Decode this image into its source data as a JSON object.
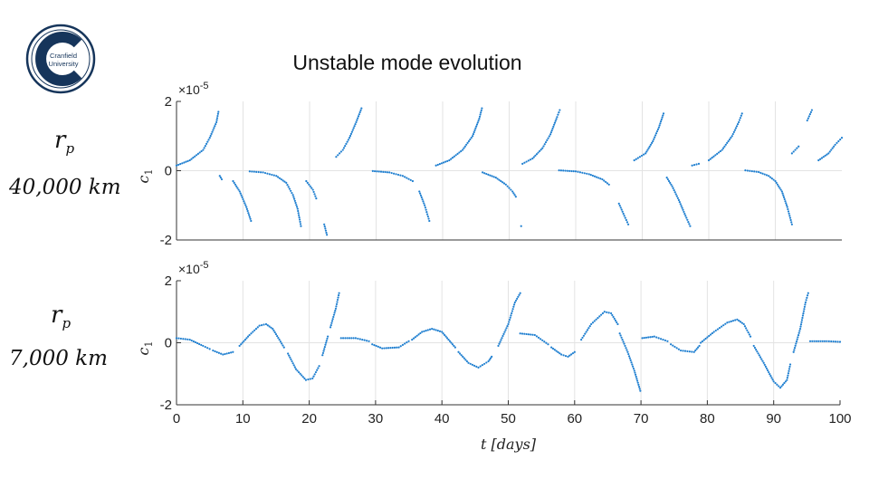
{
  "logo": {
    "line1": "Cranfield",
    "line2": "University"
  },
  "title": "Unstable mode evolution",
  "left_labels": [
    {
      "symbol": "r",
      "subscript": "p",
      "value": "40,000 km"
    },
    {
      "symbol": "r",
      "subscript": "p",
      "value": "7,000 km"
    }
  ],
  "colors": {
    "series": "#1f7fd0",
    "grid": "#e3e3e3",
    "axis": "#333333",
    "logo_navy": "#16355b"
  },
  "chart_data": [
    {
      "type": "scatter",
      "title": "",
      "xlabel": "",
      "ylabel": "c1",
      "ylabel_symbol": "c",
      "ylabel_subscript": "1",
      "y_multiplier": "×10",
      "y_exponent": "-5",
      "xlim": [
        0,
        100
      ],
      "ylim": [
        -2,
        2
      ],
      "y_ticks": [
        "2",
        "0",
        "-2"
      ],
      "grid": true,
      "segments": [
        [
          [
            0,
            0.15
          ],
          [
            2,
            0.3
          ],
          [
            4,
            0.6
          ],
          [
            5,
            0.95
          ],
          [
            6,
            1.4
          ],
          [
            6.3,
            1.7
          ]
        ],
        [
          [
            6.5,
            -0.15
          ],
          [
            6.8,
            -0.25
          ]
        ],
        [
          [
            8.5,
            -0.3
          ],
          [
            9.5,
            -0.6
          ],
          [
            10.5,
            -1.05
          ],
          [
            11.2,
            -1.45
          ]
        ],
        [
          [
            11,
            -0.02
          ],
          [
            13,
            -0.05
          ],
          [
            15,
            -0.15
          ],
          [
            16.5,
            -0.35
          ],
          [
            17.5,
            -0.7
          ],
          [
            18.2,
            -1.1
          ],
          [
            18.7,
            -1.6
          ]
        ],
        [
          [
            19.5,
            -0.3
          ],
          [
            20.5,
            -0.55
          ],
          [
            21,
            -0.8
          ]
        ],
        [
          [
            22.2,
            -1.55
          ],
          [
            22.6,
            -1.85
          ]
        ],
        [
          [
            24,
            0.4
          ],
          [
            25,
            0.6
          ],
          [
            26,
            0.95
          ],
          [
            27,
            1.4
          ],
          [
            27.8,
            1.8
          ]
        ],
        [
          [
            29.5,
            -0.01
          ],
          [
            32,
            -0.05
          ],
          [
            34,
            -0.15
          ],
          [
            35.5,
            -0.3
          ]
        ],
        [
          [
            36.5,
            -0.6
          ],
          [
            37.3,
            -1.0
          ],
          [
            38,
            -1.45
          ]
        ],
        [
          [
            39,
            0.15
          ],
          [
            41,
            0.3
          ],
          [
            43,
            0.6
          ],
          [
            44.5,
            1.0
          ],
          [
            45.5,
            1.5
          ],
          [
            45.9,
            1.8
          ]
        ],
        [
          [
            46,
            -0.05
          ],
          [
            48,
            -0.2
          ],
          [
            49.5,
            -0.4
          ],
          [
            50.5,
            -0.6
          ],
          [
            51,
            -0.75
          ]
        ],
        [
          [
            51.8,
            -1.6
          ]
        ],
        [
          [
            52,
            0.2
          ],
          [
            53.5,
            0.35
          ],
          [
            55,
            0.65
          ],
          [
            56.2,
            1.05
          ],
          [
            57.2,
            1.55
          ],
          [
            57.6,
            1.75
          ]
        ],
        [
          [
            57.5,
            0.01
          ],
          [
            60,
            -0.02
          ],
          [
            62,
            -0.1
          ],
          [
            64,
            -0.25
          ],
          [
            65,
            -0.4
          ]
        ],
        [
          [
            66.5,
            -0.95
          ],
          [
            67.3,
            -1.3
          ],
          [
            67.9,
            -1.55
          ]
        ],
        [
          [
            68.8,
            0.3
          ],
          [
            70.5,
            0.5
          ],
          [
            71.6,
            0.85
          ],
          [
            72.5,
            1.25
          ],
          [
            73.2,
            1.65
          ]
        ],
        [
          [
            73.7,
            -0.2
          ],
          [
            74.5,
            -0.45
          ],
          [
            75.5,
            -0.85
          ],
          [
            76.5,
            -1.3
          ],
          [
            77.2,
            -1.6
          ]
        ],
        [
          [
            77.5,
            0.15
          ],
          [
            78.5,
            0.2
          ]
        ],
        [
          [
            80,
            0.3
          ],
          [
            82,
            0.6
          ],
          [
            83.5,
            1.0
          ],
          [
            84.5,
            1.4
          ],
          [
            85,
            1.65
          ]
        ],
        [
          [
            85.5,
            0.01
          ],
          [
            87.5,
            -0.04
          ],
          [
            89,
            -0.15
          ],
          [
            90,
            -0.3
          ],
          [
            91,
            -0.6
          ],
          [
            91.8,
            -1.05
          ],
          [
            92.5,
            -1.55
          ]
        ],
        [
          [
            92.5,
            0.5
          ],
          [
            93.5,
            0.7
          ]
        ],
        [
          [
            94.8,
            1.45
          ],
          [
            95.5,
            1.75
          ]
        ],
        [
          [
            96.5,
            0.3
          ],
          [
            98,
            0.5
          ],
          [
            99,
            0.75
          ],
          [
            100,
            0.95
          ]
        ]
      ]
    },
    {
      "type": "scatter",
      "title": "",
      "xlabel": "t [days]",
      "xlabel_symbol": "t",
      "xlabel_unit": "[days]",
      "ylabel": "c1",
      "ylabel_symbol": "c",
      "ylabel_subscript": "1",
      "y_multiplier": "×10",
      "y_exponent": "-5",
      "xlim": [
        0,
        100
      ],
      "ylim": [
        -2,
        2
      ],
      "x_ticks": [
        "0",
        "10",
        "20",
        "30",
        "40",
        "50",
        "60",
        "70",
        "80",
        "90",
        "100"
      ],
      "y_ticks": [
        "2",
        "0",
        "-2"
      ],
      "grid": true,
      "segments": [
        [
          [
            0,
            0.15
          ],
          [
            2,
            0.1
          ],
          [
            4,
            -0.1
          ],
          [
            5,
            -0.2
          ]
        ],
        [
          [
            5.5,
            -0.25
          ],
          [
            7,
            -0.38
          ],
          [
            8.5,
            -0.3
          ]
        ],
        [
          [
            9.5,
            -0.1
          ],
          [
            11,
            0.25
          ],
          [
            12.5,
            0.55
          ],
          [
            13.5,
            0.6
          ],
          [
            14.5,
            0.45
          ],
          [
            15.5,
            0.1
          ],
          [
            16.2,
            -0.15
          ]
        ],
        [
          [
            16.8,
            -0.35
          ],
          [
            18,
            -0.85
          ],
          [
            19.5,
            -1.2
          ],
          [
            20.5,
            -1.15
          ],
          [
            21.5,
            -0.75
          ]
        ],
        [
          [
            22,
            -0.4
          ],
          [
            22.8,
            0.2
          ]
        ],
        [
          [
            23.2,
            0.5
          ],
          [
            24,
            1.1
          ],
          [
            24.5,
            1.6
          ]
        ],
        [
          [
            24.8,
            0.15
          ],
          [
            27,
            0.15
          ],
          [
            29,
            0.05
          ]
        ],
        [
          [
            29.5,
            -0.05
          ],
          [
            31,
            -0.18
          ],
          [
            33.5,
            -0.15
          ],
          [
            35,
            0.05
          ]
        ],
        [
          [
            35.5,
            0.1
          ],
          [
            37,
            0.35
          ],
          [
            38.5,
            0.45
          ],
          [
            40,
            0.35
          ],
          [
            41,
            0.1
          ],
          [
            42,
            -0.15
          ]
        ],
        [
          [
            42.5,
            -0.3
          ],
          [
            44,
            -0.65
          ],
          [
            45.5,
            -0.8
          ],
          [
            47,
            -0.6
          ],
          [
            47.5,
            -0.45
          ]
        ],
        [
          [
            48.5,
            -0.1
          ],
          [
            50,
            0.6
          ],
          [
            51,
            1.3
          ],
          [
            51.8,
            1.6
          ]
        ],
        [
          [
            51.8,
            0.3
          ],
          [
            54,
            0.25
          ],
          [
            56,
            -0.05
          ]
        ],
        [
          [
            56.5,
            -0.15
          ],
          [
            58,
            -0.38
          ],
          [
            59,
            -0.45
          ],
          [
            60,
            -0.3
          ]
        ],
        [
          [
            61,
            0.1
          ],
          [
            62.5,
            0.6
          ],
          [
            64.5,
            1.0
          ],
          [
            65.5,
            0.95
          ],
          [
            66.5,
            0.6
          ]
        ],
        [
          [
            66.8,
            0.3
          ],
          [
            68,
            -0.3
          ],
          [
            69,
            -0.9
          ],
          [
            69.9,
            -1.55
          ]
        ],
        [
          [
            70.2,
            0.15
          ],
          [
            72,
            0.2
          ],
          [
            74,
            0.05
          ]
        ],
        [
          [
            74.5,
            -0.05
          ],
          [
            76,
            -0.25
          ],
          [
            78,
            -0.3
          ],
          [
            78.8,
            -0.1
          ]
        ],
        [
          [
            79,
            0
          ],
          [
            81,
            0.35
          ],
          [
            83,
            0.65
          ],
          [
            84.5,
            0.75
          ],
          [
            85.5,
            0.6
          ],
          [
            86.5,
            0.2
          ]
        ],
        [
          [
            87,
            -0.1
          ],
          [
            88.5,
            -0.65
          ],
          [
            90,
            -1.25
          ],
          [
            91,
            -1.45
          ],
          [
            92,
            -1.2
          ],
          [
            92.5,
            -0.7
          ]
        ],
        [
          [
            93,
            -0.3
          ],
          [
            94,
            0.45
          ],
          [
            94.8,
            1.3
          ],
          [
            95.2,
            1.6
          ]
        ],
        [
          [
            95.5,
            0.05
          ],
          [
            98,
            0.05
          ],
          [
            100,
            0.03
          ]
        ]
      ]
    }
  ]
}
